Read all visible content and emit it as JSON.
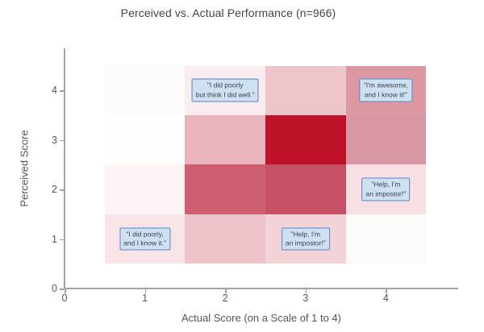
{
  "title": "Perceived vs. Actual Performance (n=966)",
  "colors": {
    "background": "#ffffff",
    "axis_line": "#a3a3a3",
    "tick_text": "#565656",
    "title_text": "#444444",
    "annotation_bg": "#cfe0f0",
    "annotation_border": "#5588c7",
    "annotation_text": "#374550",
    "max_density": "#bd1227"
  },
  "chart_data": {
    "type": "heatmap",
    "title": "Perceived vs. Actual Performance (n=966)",
    "xlabel": "Actual Score (on a Scale of 1 to 4)",
    "ylabel": "Perceived Score",
    "n_total": 966,
    "x": [
      1,
      2,
      3,
      4
    ],
    "y": [
      1,
      2,
      3,
      4
    ],
    "xlim": [
      0,
      4.9
    ],
    "ylim": [
      0,
      4.85
    ],
    "x_ticks": [
      0,
      1,
      2,
      3,
      4
    ],
    "y_ticks": [
      0,
      1,
      2,
      3,
      4
    ],
    "cell_half_size": 0.5,
    "grid": false,
    "legend": "none",
    "cells": [
      {
        "x": 1,
        "y": 1,
        "color": "#f9e4e7",
        "intensity_est": 0.12
      },
      {
        "x": 2,
        "y": 1,
        "color": "#eec3ca",
        "intensity_est": 0.25
      },
      {
        "x": 3,
        "y": 1,
        "color": "#f4d3d8",
        "intensity_est": 0.17
      },
      {
        "x": 4,
        "y": 1,
        "color": "#fdfafa",
        "intensity_est": 0.02
      },
      {
        "x": 1,
        "y": 2,
        "color": "#fdf4f5",
        "intensity_est": 0.05
      },
      {
        "x": 2,
        "y": 2,
        "color": "#cd5f71",
        "intensity_est": 0.62
      },
      {
        "x": 3,
        "y": 2,
        "color": "#c65164",
        "intensity_est": 0.66
      },
      {
        "x": 4,
        "y": 2,
        "color": "#f8dfe3",
        "intensity_est": 0.13
      },
      {
        "x": 1,
        "y": 3,
        "color": "#fefefe",
        "intensity_est": 0.01
      },
      {
        "x": 2,
        "y": 3,
        "color": "#e9b4bc",
        "intensity_est": 0.3
      },
      {
        "x": 3,
        "y": 3,
        "color": "#bd1227",
        "intensity_est": 1.0
      },
      {
        "x": 4,
        "y": 3,
        "color": "#d997a3",
        "intensity_est": 0.41
      },
      {
        "x": 1,
        "y": 4,
        "color": "#fdfbfb",
        "intensity_est": 0.02
      },
      {
        "x": 2,
        "y": 4,
        "color": "#fbecef",
        "intensity_est": 0.08
      },
      {
        "x": 3,
        "y": 4,
        "color": "#eec5cb",
        "intensity_est": 0.24
      },
      {
        "x": 4,
        "y": 4,
        "color": "#dc99a4",
        "intensity_est": 0.4
      }
    ],
    "annotations": [
      {
        "id": "did-poorly-think-did-well",
        "x": 2,
        "y": 4,
        "text": "\"I did poorly\nbut think I did well.\""
      },
      {
        "id": "awesome-know-it",
        "x": 4,
        "y": 4,
        "text": "\"I'm awesome,\nand I know it!\""
      },
      {
        "id": "impostor-right",
        "x": 4,
        "y": 2,
        "text": "\"Help, I'm\nan impostor!\""
      },
      {
        "id": "did-poorly-know-it",
        "x": 1,
        "y": 1,
        "text": "\"I did poorly,\nand I know it.\""
      },
      {
        "id": "impostor-bottom",
        "x": 3,
        "y": 1,
        "text": "\"Help, I'm\nan impostor!\""
      }
    ]
  }
}
